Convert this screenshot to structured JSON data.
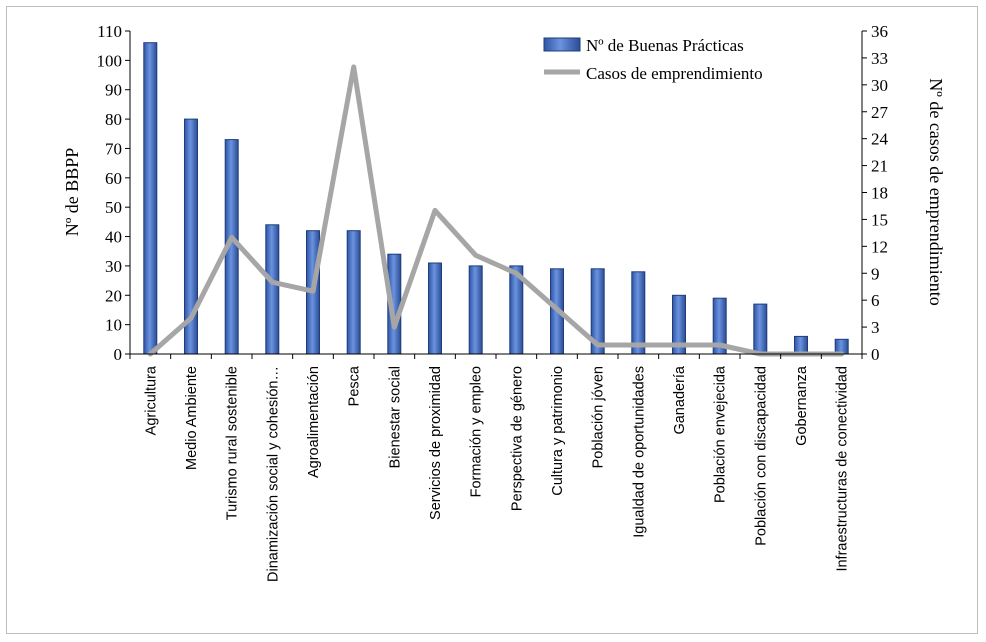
{
  "chart_data": {
    "type": "bar",
    "categories": [
      "Agricultura",
      "Medio Ambiente",
      "Turismo rural sostenible",
      "Dinamización social y cohesión…",
      "Agroalimentación",
      "Pesca",
      "Bienestar social",
      "Servicios de proximidad",
      "Formación y empleo",
      "Perspectiva de género",
      "Cultura y patrimonio",
      "Población jóven",
      "Igualdad de oportunidades",
      "Ganadería",
      "Población envejecida",
      "Población con discapacidad",
      "Gobernanza",
      "Infraestructuras de conectividad"
    ],
    "series": [
      {
        "name": "Nº de Buenas Prácticas",
        "type": "bar",
        "axis": "left",
        "color": "#4472C4",
        "values": [
          106,
          80,
          73,
          44,
          42,
          42,
          34,
          31,
          30,
          30,
          29,
          29,
          28,
          20,
          19,
          17,
          6,
          5
        ]
      },
      {
        "name": "Casos de emprendimiento",
        "type": "line",
        "axis": "right",
        "color": "#A6A6A6",
        "values": [
          0,
          4,
          13,
          8,
          7,
          32,
          3,
          16,
          11,
          9,
          5,
          1,
          1,
          1,
          1,
          0,
          0,
          0
        ]
      }
    ],
    "ylabel": "Nº de BBPP",
    "y2label": "Nº de casos de emprendimiento",
    "ylim": [
      0,
      110
    ],
    "yticks": [
      0,
      10,
      20,
      30,
      40,
      50,
      60,
      70,
      80,
      90,
      100,
      110
    ],
    "y2lim": [
      0,
      36
    ],
    "y2ticks": [
      0,
      3,
      6,
      9,
      12,
      15,
      18,
      21,
      24,
      27,
      30,
      33,
      36
    ],
    "grid": false,
    "legend_position": "top-right"
  }
}
